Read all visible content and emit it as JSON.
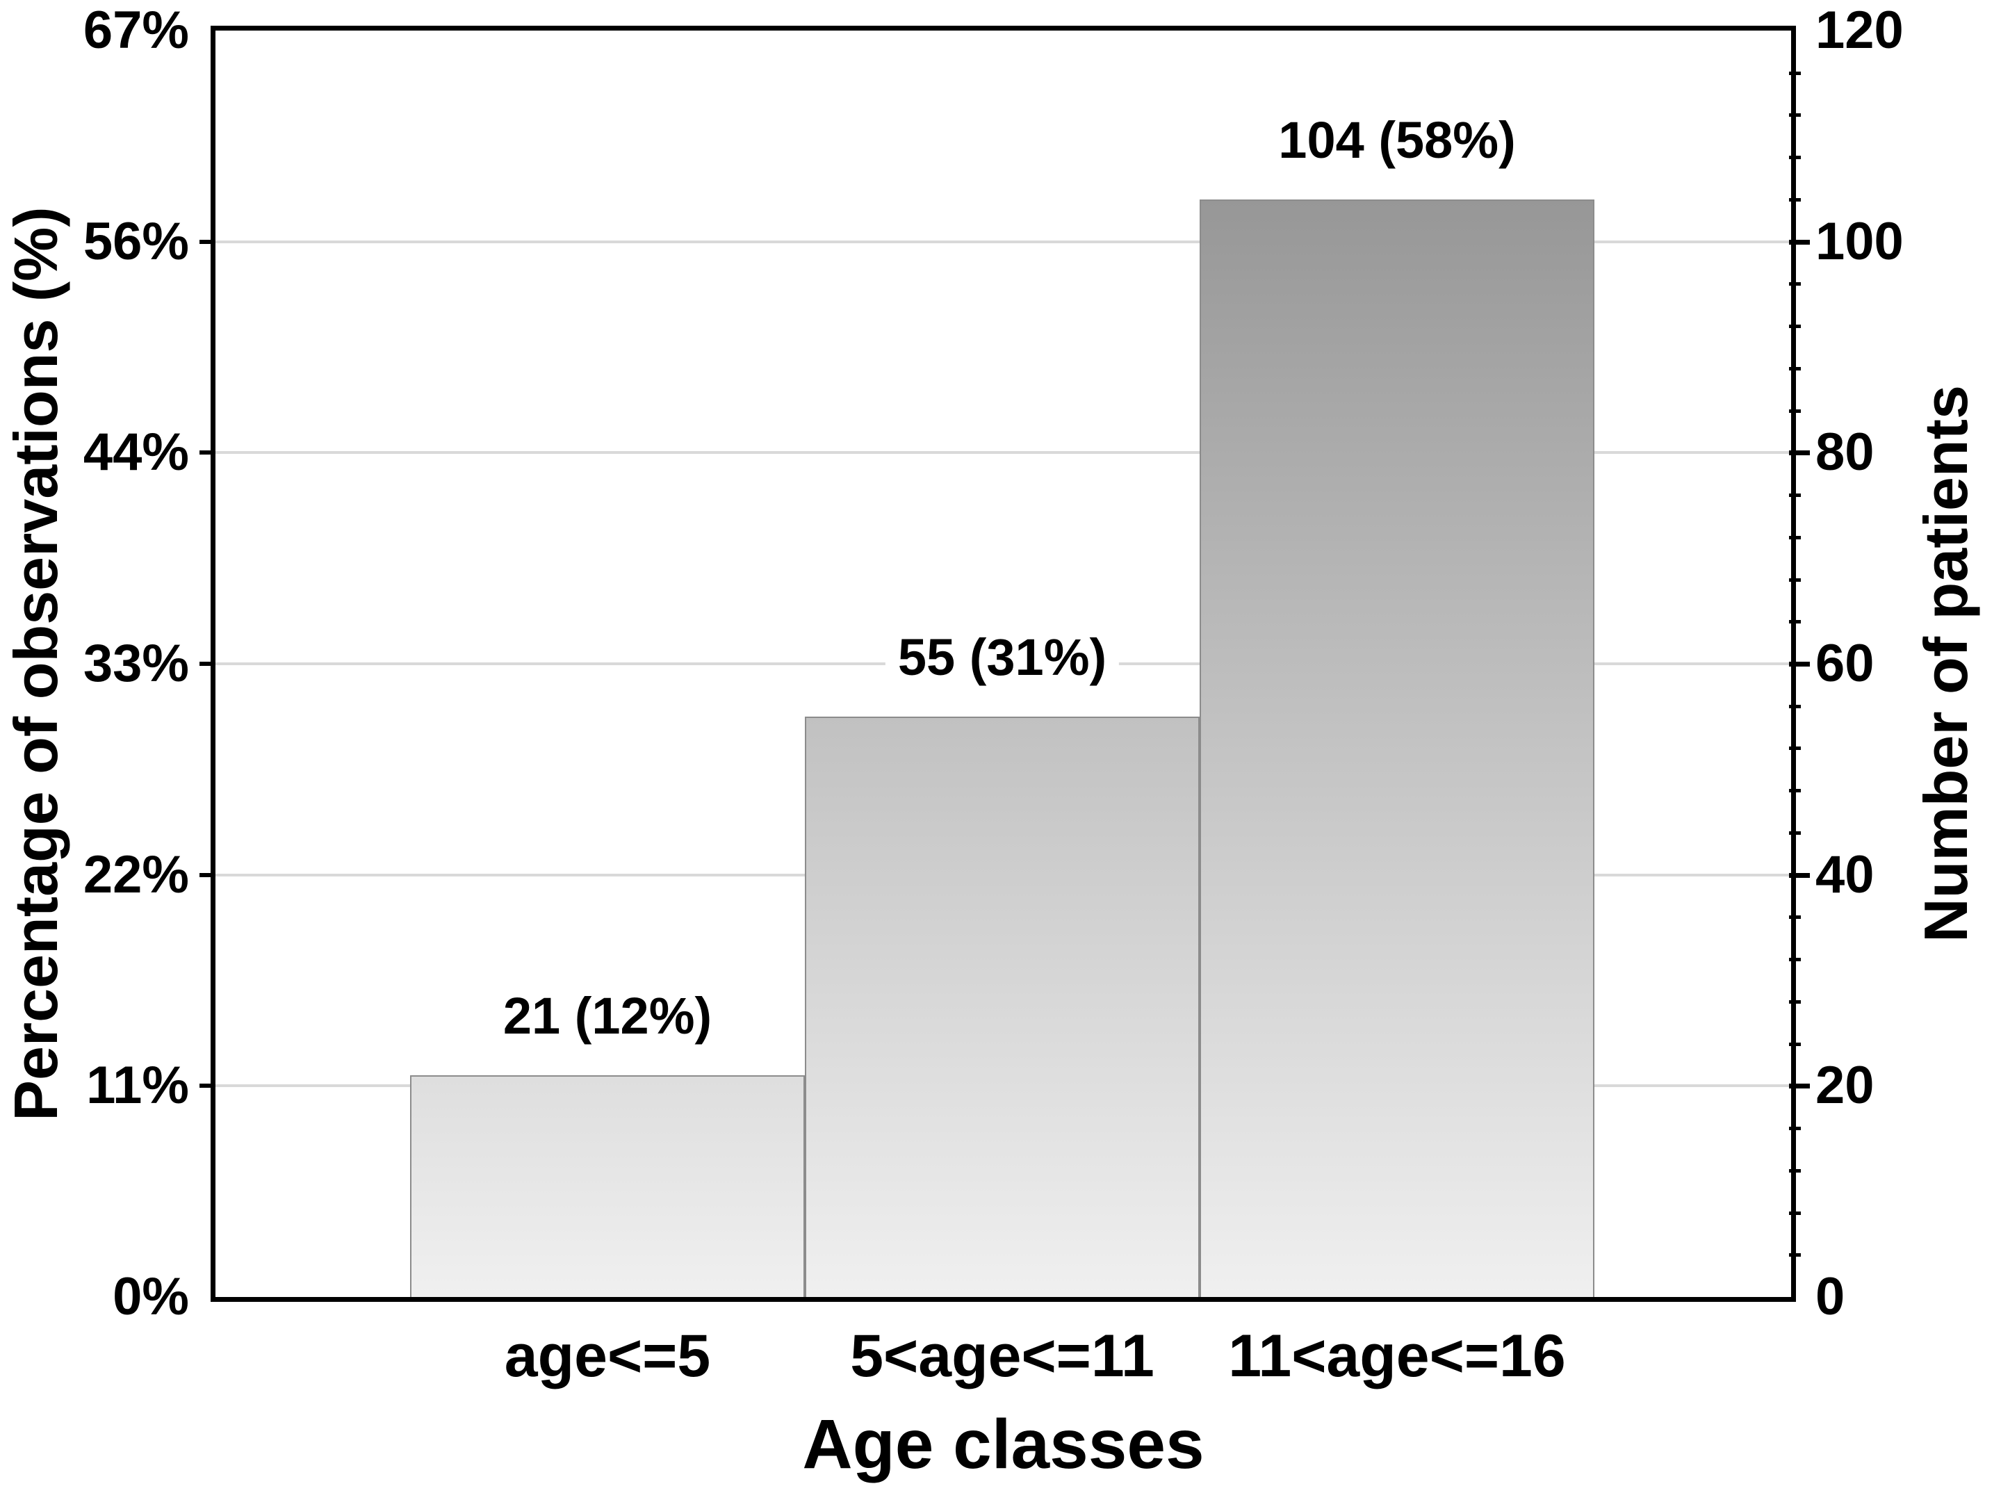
{
  "chart_data": {
    "type": "bar",
    "subtype": "histogram",
    "title": "",
    "categories": [
      "age<=5",
      "5<age<=11",
      "11<age<=16"
    ],
    "values": [
      21,
      55,
      104
    ],
    "percent_of_total": [
      "12%",
      "31%",
      "58%"
    ],
    "bar_labels": [
      "21 (12%)",
      "55 (31%)",
      "104 (58%)"
    ],
    "xlabel": "Age classes",
    "left_axis": {
      "label": "Percentage of observations (%)",
      "ticks": [
        "0%",
        "11%",
        "22%",
        "33%",
        "44%",
        "56%",
        "67%"
      ]
    },
    "right_axis": {
      "label": "Number of patients",
      "ticks": [
        "0",
        "20",
        "40",
        "60",
        "80",
        "100",
        "120"
      ],
      "tick_values": [
        0,
        20,
        40,
        60,
        80,
        100,
        120
      ],
      "minor_tick_step": 4
    },
    "ylim": [
      0,
      120
    ],
    "grid": "horizontal-major-only",
    "legend": "none",
    "colors": {
      "bar_top": [
        "#dedede",
        "#c1c1c1",
        "#979797"
      ],
      "bar_bottom": "#f0f0f0",
      "bar_outline": "#8c8c8c",
      "gridline": "#d9d9d9",
      "frame": "#000000",
      "text": "#000000",
      "label_bg": "#ffffff",
      "background": "#ffffff"
    }
  }
}
